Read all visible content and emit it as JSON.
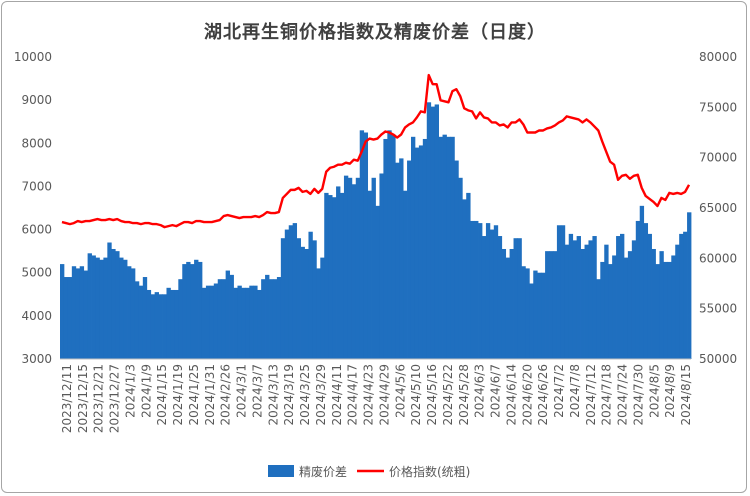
{
  "chart_data": {
    "type": "bar",
    "title": "湖北再生铜价格指数及精废价差（日度）",
    "y_left": {
      "min": 3000,
      "max": 10000,
      "ticks": [
        3000,
        4000,
        5000,
        6000,
        7000,
        8000,
        9000,
        10000
      ]
    },
    "y_right": {
      "min": 50000,
      "max": 80000,
      "ticks": [
        50000,
        55000,
        60000,
        65000,
        70000,
        75000,
        80000
      ]
    },
    "x_tick_labels": [
      "2023/12/11",
      "2023/12/15",
      "2023/12/21",
      "2023/12/27",
      "2024/1/3",
      "2024/1/9",
      "2024/1/15",
      "2024/1/19",
      "2024/1/25",
      "2024/1/31",
      "2024/2/26",
      "2024/3/1",
      "2024/3/7",
      "2024/3/13",
      "2024/3/19",
      "2024/3/25",
      "2024/3/29",
      "2024/4/11",
      "2024/4/17",
      "2024/4/23",
      "2024/4/29",
      "2024/5/6",
      "2024/5/10",
      "2024/5/16",
      "2024/5/22",
      "2024/5/28",
      "2024/6/3",
      "2024/6/7",
      "2024/6/14",
      "2024/6/20",
      "2024/6/26",
      "2024/7/2",
      "2024/7/8",
      "2024/7/12",
      "2024/7/18",
      "2024/7/24",
      "2024/7/30",
      "2024/8/5",
      "2024/8/9",
      "2024/8/15"
    ],
    "grid": false,
    "legend_position": "bottom",
    "series": [
      {
        "name": "精废价差",
        "type": "bar",
        "axis": "left",
        "color": "#1f6fbf",
        "values": [
          5200,
          4900,
          4900,
          5150,
          5100,
          5150,
          5050,
          5450,
          5400,
          5350,
          5300,
          5350,
          5700,
          5550,
          5500,
          5350,
          5300,
          5150,
          5100,
          4800,
          4700,
          4900,
          4600,
          4500,
          4550,
          4500,
          4500,
          4650,
          4600,
          4600,
          4850,
          5200,
          5250,
          5200,
          5300,
          5250,
          4650,
          4700,
          4700,
          4750,
          4850,
          4850,
          5050,
          4950,
          4650,
          4700,
          4650,
          4650,
          4700,
          4700,
          4600,
          4850,
          4950,
          4850,
          4850,
          4900,
          5800,
          6000,
          6100,
          6150,
          5800,
          5600,
          5550,
          5950,
          5750,
          5100,
          5350,
          6850,
          6800,
          6750,
          7000,
          6850,
          7250,
          7200,
          7050,
          7200,
          8300,
          8250,
          6900,
          7200,
          6550,
          7300,
          8100,
          8300,
          8200,
          7550,
          7650,
          6900,
          7600,
          8150,
          7900,
          7950,
          8100,
          8950,
          8850,
          8900,
          8150,
          8200,
          8150,
          8150,
          7600,
          7200,
          6700,
          6850,
          6200,
          6200,
          6150,
          5850,
          6150,
          6000,
          6100,
          5850,
          5550,
          5350,
          5550,
          5800,
          5800,
          5150,
          5100,
          4750,
          5050,
          5000,
          5000,
          5500,
          5500,
          5500,
          6100,
          6100,
          5650,
          5900,
          5750,
          5850,
          5550,
          5650,
          5750,
          5850,
          4850,
          5250,
          5650,
          5200,
          5400,
          5850,
          5900,
          5350,
          5500,
          5750,
          6200,
          6550,
          6150,
          5900,
          5550,
          5200,
          5500,
          5250,
          5250,
          5400,
          5650,
          5900,
          5950,
          6400
        ]
      },
      {
        "name": "价格指数(统粗)",
        "type": "line",
        "axis": "right",
        "color": "#ff0000",
        "values": [
          63600,
          63500,
          63400,
          63500,
          63700,
          63600,
          63700,
          63700,
          63800,
          63900,
          63800,
          63800,
          63900,
          63800,
          63900,
          63700,
          63600,
          63600,
          63500,
          63500,
          63400,
          63500,
          63500,
          63400,
          63400,
          63300,
          63100,
          63200,
          63300,
          63200,
          63400,
          63600,
          63600,
          63500,
          63700,
          63700,
          63600,
          63600,
          63600,
          63700,
          63800,
          64200,
          64300,
          64200,
          64100,
          64000,
          64100,
          64100,
          64100,
          64200,
          64100,
          64300,
          64600,
          64500,
          64500,
          64600,
          66000,
          66400,
          66800,
          66800,
          67000,
          66600,
          66700,
          66400,
          66900,
          66500,
          66900,
          68600,
          69000,
          69100,
          69300,
          69300,
          69500,
          69400,
          69800,
          69700,
          70600,
          71600,
          71900,
          71800,
          71900,
          72300,
          72600,
          72500,
          72300,
          72000,
          72300,
          73000,
          73300,
          73500,
          74000,
          74600,
          74500,
          78200,
          77300,
          77300,
          75700,
          75600,
          75500,
          76600,
          76800,
          76100,
          74900,
          74700,
          74600,
          73900,
          74500,
          74000,
          73900,
          73500,
          73500,
          73200,
          73300,
          73000,
          73500,
          73500,
          73800,
          73300,
          72500,
          72500,
          72500,
          72700,
          72700,
          72900,
          73000,
          73200,
          73500,
          73700,
          74100,
          74000,
          73900,
          73800,
          73500,
          73800,
          73500,
          73100,
          72700,
          71600,
          70600,
          69600,
          69300,
          67800,
          68200,
          68300,
          67900,
          68200,
          68300,
          67000,
          66200,
          65900,
          65600,
          65200,
          66000,
          65800,
          66500,
          66400,
          66500,
          66400,
          66600,
          67300
        ]
      }
    ]
  },
  "legend": {
    "bar_label": "精废价差",
    "line_label": "价格指数(统粗)"
  }
}
